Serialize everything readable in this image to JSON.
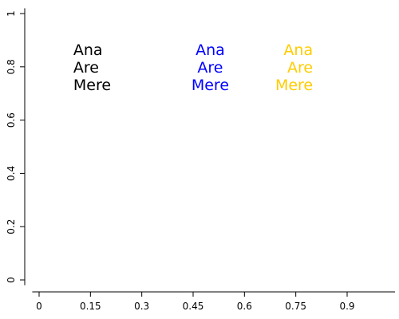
{
  "chart_data": {
    "type": "scatter",
    "title": "",
    "xlabel": "",
    "ylabel": "",
    "xlim": [
      -0.02,
      1.04
    ],
    "ylim": [
      -0.02,
      1.02
    ],
    "x_ticks": [
      "0",
      "0.15",
      "0.3",
      "0.45",
      "0.6",
      "0.75",
      "0.9"
    ],
    "x_tick_values": [
      0,
      0.15,
      0.3,
      0.45,
      0.6,
      0.75,
      0.9
    ],
    "y_ticks": [
      "0",
      "0.2",
      "0.4",
      "0.6",
      "0.8",
      "1"
    ],
    "y_tick_values": [
      0,
      0.2,
      0.4,
      0.6,
      0.8,
      1
    ],
    "grid": false,
    "text_blocks": [
      {
        "lines": [
          "Ana",
          "Are",
          "Mere"
        ],
        "x": 0.1,
        "y": 0.8,
        "align": "left",
        "color": "#000000"
      },
      {
        "lines": [
          "Ana",
          "Are",
          "Mere"
        ],
        "x": 0.5,
        "y": 0.8,
        "align": "center",
        "color": "#0000ff"
      },
      {
        "lines": [
          "Ana",
          "Are",
          "Mere"
        ],
        "x": 0.8,
        "y": 0.8,
        "align": "right",
        "color": "#ffcc00"
      }
    ]
  }
}
